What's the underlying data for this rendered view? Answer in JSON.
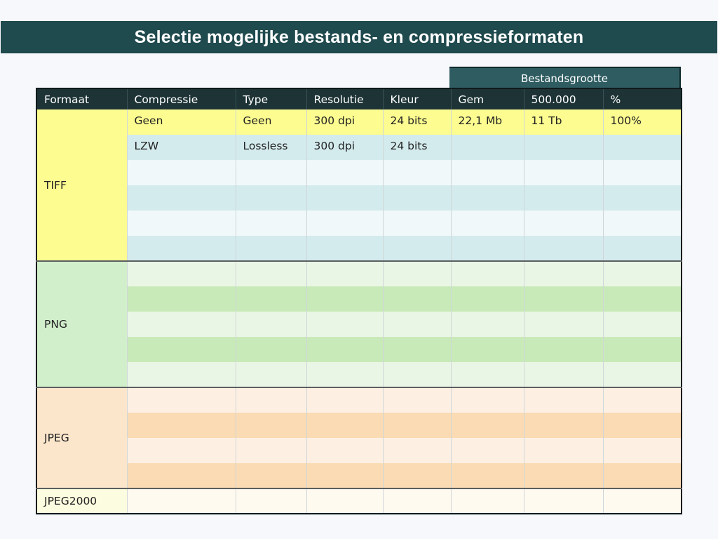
{
  "title": "Selectie mogelijke bestands- en compressieformaten",
  "group_header": "Bestandsgrootte",
  "columns": [
    "Formaat",
    "Compressie",
    "Type",
    "Resolutie",
    "Kleur",
    "Gem",
    "500.000",
    "%"
  ],
  "formats": {
    "tiff": "TIFF",
    "png": "PNG",
    "jpeg": "JPEG",
    "jpeg2000": "JPEG2000"
  },
  "rows": {
    "tiff_1": [
      "Geen",
      "Geen",
      "300 dpi",
      "24 bits",
      "22,1 Mb",
      "11 Tb",
      "100%"
    ],
    "tiff_2": [
      "LZW",
      "Lossless",
      "300 dpi",
      "24 bits",
      "",
      "",
      ""
    ]
  },
  "colors": {
    "title_bg": "#1f4a4e",
    "header_bg": "#1d3336",
    "highlight": "#fcfc90",
    "tiff": "#d4ebee",
    "png": "#c8eab9",
    "jpeg": "#fadbb3"
  }
}
